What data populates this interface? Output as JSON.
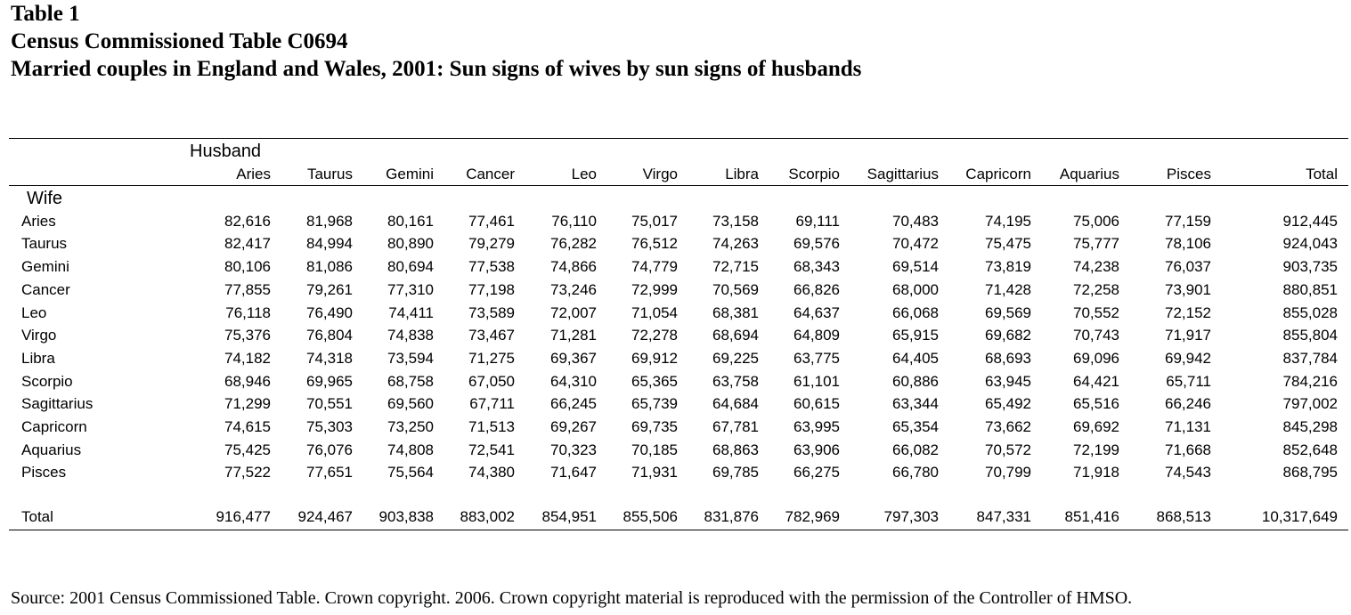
{
  "titles": {
    "line1": "Table 1",
    "line2": "Census Commissioned Table C0694",
    "line3": "Married couples in England and Wales, 2001: Sun signs of wives by sun signs of husbands"
  },
  "table": {
    "column_group_label": "Husband",
    "row_group_label": "Wife",
    "columns": [
      "Aries",
      "Taurus",
      "Gemini",
      "Cancer",
      "Leo",
      "Virgo",
      "Libra",
      "Scorpio",
      "Sagittarius",
      "Capricorn",
      "Aquarius",
      "Pisces",
      "Total"
    ],
    "rows": [
      {
        "label": "Aries",
        "values": [
          "82,616",
          "81,968",
          "80,161",
          "77,461",
          "76,110",
          "75,017",
          "73,158",
          "69,111",
          "70,483",
          "74,195",
          "75,006",
          "77,159",
          "912,445"
        ]
      },
      {
        "label": "Taurus",
        "values": [
          "82,417",
          "84,994",
          "80,890",
          "79,279",
          "76,282",
          "76,512",
          "74,263",
          "69,576",
          "70,472",
          "75,475",
          "75,777",
          "78,106",
          "924,043"
        ]
      },
      {
        "label": "Gemini",
        "values": [
          "80,106",
          "81,086",
          "80,694",
          "77,538",
          "74,866",
          "74,779",
          "72,715",
          "68,343",
          "69,514",
          "73,819",
          "74,238",
          "76,037",
          "903,735"
        ]
      },
      {
        "label": "Cancer",
        "values": [
          "77,855",
          "79,261",
          "77,310",
          "77,198",
          "73,246",
          "72,999",
          "70,569",
          "66,826",
          "68,000",
          "71,428",
          "72,258",
          "73,901",
          "880,851"
        ]
      },
      {
        "label": "Leo",
        "values": [
          "76,118",
          "76,490",
          "74,411",
          "73,589",
          "72,007",
          "71,054",
          "68,381",
          "64,637",
          "66,068",
          "69,569",
          "70,552",
          "72,152",
          "855,028"
        ]
      },
      {
        "label": "Virgo",
        "values": [
          "75,376",
          "76,804",
          "74,838",
          "73,467",
          "71,281",
          "72,278",
          "68,694",
          "64,809",
          "65,915",
          "69,682",
          "70,743",
          "71,917",
          "855,804"
        ]
      },
      {
        "label": "Libra",
        "values": [
          "74,182",
          "74,318",
          "73,594",
          "71,275",
          "69,367",
          "69,912",
          "69,225",
          "63,775",
          "64,405",
          "68,693",
          "69,096",
          "69,942",
          "837,784"
        ]
      },
      {
        "label": "Scorpio",
        "values": [
          "68,946",
          "69,965",
          "68,758",
          "67,050",
          "64,310",
          "65,365",
          "63,758",
          "61,101",
          "60,886",
          "63,945",
          "64,421",
          "65,711",
          "784,216"
        ]
      },
      {
        "label": "Sagittarius",
        "values": [
          "71,299",
          "70,551",
          "69,560",
          "67,711",
          "66,245",
          "65,739",
          "64,684",
          "60,615",
          "63,344",
          "65,492",
          "65,516",
          "66,246",
          "797,002"
        ]
      },
      {
        "label": "Capricorn",
        "values": [
          "74,615",
          "75,303",
          "73,250",
          "71,513",
          "69,267",
          "69,735",
          "67,781",
          "63,995",
          "65,354",
          "73,662",
          "69,692",
          "71,131",
          "845,298"
        ]
      },
      {
        "label": "Aquarius",
        "values": [
          "75,425",
          "76,076",
          "74,808",
          "72,541",
          "70,323",
          "70,185",
          "68,863",
          "63,906",
          "66,082",
          "70,572",
          "72,199",
          "71,668",
          "852,648"
        ]
      },
      {
        "label": "Pisces",
        "values": [
          "77,522",
          "77,651",
          "75,564",
          "74,380",
          "71,647",
          "71,931",
          "69,785",
          "66,275",
          "66,780",
          "70,799",
          "71,918",
          "74,543",
          "868,795"
        ]
      }
    ],
    "total_row": {
      "label": "Total",
      "values": [
        "916,477",
        "924,467",
        "903,838",
        "883,002",
        "854,951",
        "855,506",
        "831,876",
        "782,969",
        "797,303",
        "847,331",
        "851,416",
        "868,513",
        "10,317,649"
      ]
    }
  },
  "source": "Source: 2001 Census Commissioned Table.  Crown copyright. 2006. Crown copyright material is reproduced with the permission of the Controller of HMSO."
}
